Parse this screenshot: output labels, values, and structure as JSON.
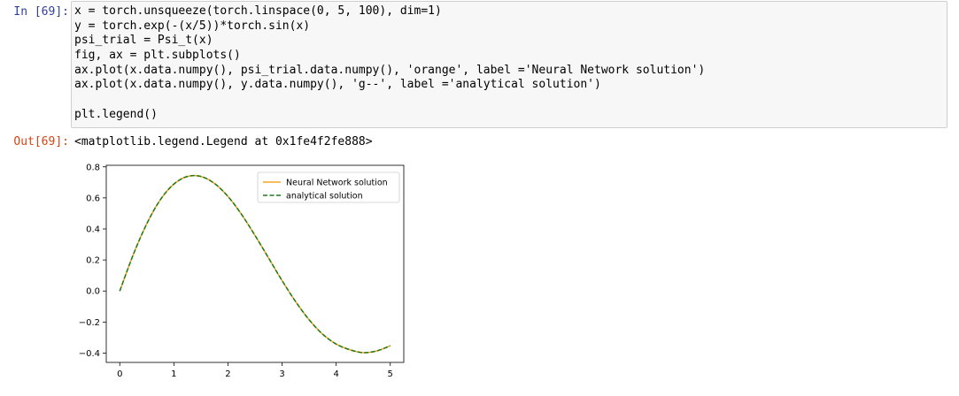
{
  "cell": {
    "in_prompt": "In [69]:",
    "out_prompt": "Out[69]:",
    "code_lines": [
      "x = torch.unsqueeze(torch.linspace(0, 5, 100), dim=1)",
      "y = torch.exp(-(x/5))*torch.sin(x)",
      "psi_trial = Psi_t(x)",
      "fig, ax = plt.subplots()",
      "ax.plot(x.data.numpy(), psi_trial.data.numpy(), 'orange', label ='Neural Network solution')",
      "ax.plot(x.data.numpy(), y.data.numpy(), 'g--', label ='analytical solution')",
      "",
      "plt.legend()"
    ],
    "output_text": "<matplotlib.legend.Legend at 0x1fe4f2fe888>"
  },
  "chart_data": {
    "type": "line",
    "title": "",
    "xlabel": "",
    "ylabel": "",
    "xlim": [
      -0.25,
      5.25
    ],
    "ylim": [
      -0.46,
      0.81
    ],
    "xticks": [
      0,
      1,
      2,
      3,
      4,
      5
    ],
    "yticks": [
      0.8,
      0.6,
      0.4,
      0.2,
      0.0,
      -0.2,
      -0.4
    ],
    "ytick_labels": [
      "0.8",
      "0.6",
      "0.4",
      "0.2",
      "0.0",
      "−0.2",
      "−0.4"
    ],
    "grid": false,
    "legend": "top-right",
    "x": [
      0.0,
      0.25,
      0.5,
      0.75,
      1.0,
      1.25,
      1.5,
      1.75,
      2.0,
      2.25,
      2.5,
      2.75,
      3.0,
      3.25,
      3.5,
      3.75,
      4.0,
      4.25,
      4.5,
      4.75,
      5.0
    ],
    "series": [
      {
        "name": "Neural Network solution",
        "color": "#f5a623",
        "style": "solid",
        "values": [
          0.0,
          0.235,
          0.434,
          0.588,
          0.689,
          0.738,
          0.738,
          0.693,
          0.609,
          0.494,
          0.358,
          0.213,
          0.067,
          -0.068,
          -0.185,
          -0.278,
          -0.342,
          -0.378,
          -0.397,
          -0.386,
          -0.353
        ]
      },
      {
        "name": "analytical solution",
        "color": "#1b7a1b",
        "style": "dashed",
        "values": [
          0.0,
          0.235,
          0.434,
          0.588,
          0.689,
          0.738,
          0.738,
          0.693,
          0.609,
          0.494,
          0.358,
          0.213,
          0.067,
          -0.068,
          -0.185,
          -0.278,
          -0.342,
          -0.378,
          -0.397,
          -0.386,
          -0.353
        ]
      }
    ]
  }
}
